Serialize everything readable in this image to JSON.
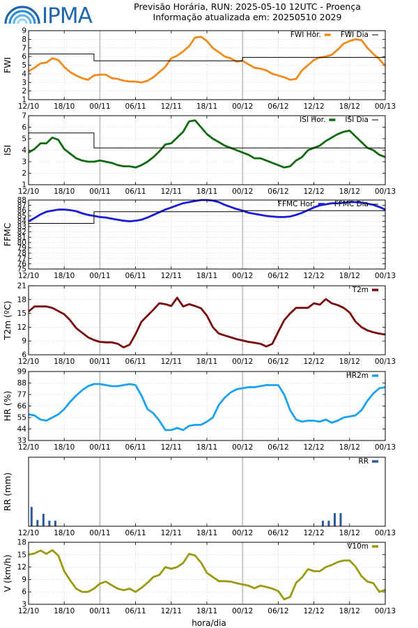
{
  "header": {
    "logo_text": "IPMA",
    "title_line1": "Previsão Horária, RUN: 2025-05-10 12UTC - Proença",
    "title_line2": "Informação atualizada em: 20250510 2029"
  },
  "colors": {
    "fwi": "#f28a1b",
    "isi": "#0d6b0d",
    "ffmc": "#1a1adb",
    "t2m": "#7a0a0a",
    "hr2m": "#1ba1f2",
    "rr": "#2a5a9c",
    "v10m": "#9a9a10",
    "grid": "#bfbfbf",
    "divider": "#c8c8c8",
    "logo": "#1f66ad"
  },
  "x_axis": {
    "title": "hora/dia",
    "ticks": [
      "12/10",
      "18/10",
      "00/11",
      "06/11",
      "12/11",
      "18/11",
      "00/12",
      "06/12",
      "12/12",
      "18/12",
      "00/13"
    ]
  },
  "chart_data": [
    {
      "id": "fwi",
      "type": "line",
      "ylabel": "FWI",
      "ylim": [
        1,
        9
      ],
      "yticks": [
        "1",
        "2",
        "3",
        "4",
        "5",
        "6",
        "7",
        "8",
        "9"
      ],
      "grid": true,
      "legend": "top-right",
      "series": [
        {
          "name": "FWI Hor.",
          "style": "line",
          "x": [
            0,
            1,
            2,
            3,
            4,
            5,
            6,
            7,
            8,
            9,
            10,
            11,
            12,
            13,
            14,
            15,
            16,
            17,
            18,
            19,
            20,
            21,
            22,
            23,
            24,
            25,
            26,
            27,
            28,
            29,
            30,
            31,
            32,
            33,
            34,
            35,
            36,
            37,
            38,
            39,
            40,
            41,
            42,
            43,
            44,
            45,
            46,
            47,
            48,
            49,
            50,
            51,
            52,
            53,
            54,
            55,
            56,
            57,
            58,
            59,
            60
          ],
          "values": [
            4.3,
            4.7,
            5.2,
            5.3,
            5.8,
            5.6,
            4.8,
            4.2,
            3.8,
            3.5,
            3.3,
            3.8,
            3.9,
            3.9,
            3.5,
            3.4,
            3.2,
            3.1,
            3.1,
            3.0,
            3.2,
            3.6,
            4.2,
            4.8,
            5.8,
            6.1,
            6.6,
            7.2,
            8.2,
            8.3,
            7.8,
            7.0,
            6.5,
            6.0,
            5.8,
            5.4,
            5.5,
            5.1,
            4.7,
            4.6,
            4.4,
            4.0,
            3.8,
            3.6,
            3.3,
            3.4,
            4.4,
            5.0,
            5.6,
            5.9,
            6.0,
            6.2,
            6.8,
            7.5,
            7.8,
            8.0,
            7.9,
            7.0,
            6.3,
            5.7,
            4.9
          ]
        },
        {
          "name": "FWI Dia",
          "style": "step",
          "x": [
            0,
            11,
            11,
            36,
            36,
            60
          ],
          "values": [
            6.3,
            6.3,
            5.5,
            5.5,
            5.9,
            5.9
          ]
        }
      ]
    },
    {
      "id": "isi",
      "type": "line",
      "ylabel": "ISI",
      "ylim": [
        1,
        7
      ],
      "yticks": [
        "1",
        "2",
        "3",
        "4",
        "5",
        "6",
        "7"
      ],
      "grid": true,
      "legend": "top-right",
      "series": [
        {
          "name": "ISI Hor.",
          "style": "line",
          "x": [
            0,
            1,
            2,
            3,
            4,
            5,
            6,
            7,
            8,
            9,
            10,
            11,
            12,
            13,
            14,
            15,
            16,
            17,
            18,
            19,
            20,
            21,
            22,
            23,
            24,
            25,
            26,
            27,
            28,
            29,
            30,
            31,
            32,
            33,
            34,
            35,
            36,
            37,
            38,
            39,
            40,
            41,
            42,
            43,
            44,
            45,
            46,
            47,
            48,
            49,
            50,
            51,
            52,
            53,
            54,
            55,
            56,
            57,
            58,
            59,
            60
          ],
          "values": [
            3.8,
            4.1,
            4.6,
            4.6,
            5.1,
            4.9,
            4.1,
            3.7,
            3.3,
            3.1,
            3.0,
            3.0,
            3.1,
            3.0,
            2.9,
            2.7,
            2.6,
            2.6,
            2.5,
            2.7,
            3.0,
            3.4,
            3.9,
            4.5,
            4.6,
            5.1,
            5.6,
            6.5,
            6.6,
            6.0,
            5.4,
            5.0,
            4.7,
            4.4,
            4.2,
            4.0,
            3.8,
            3.6,
            3.3,
            3.3,
            3.1,
            2.9,
            2.7,
            2.5,
            2.6,
            3.1,
            3.4,
            4.0,
            4.2,
            4.4,
            4.8,
            5.1,
            5.4,
            5.6,
            5.7,
            5.2,
            4.7,
            4.2,
            4.0,
            3.6,
            3.4
          ]
        },
        {
          "name": "ISI Dia",
          "style": "step",
          "x": [
            0,
            11,
            11,
            60
          ],
          "values": [
            5.5,
            5.5,
            4.2,
            4.2
          ]
        }
      ]
    },
    {
      "id": "ffmc",
      "type": "line",
      "ylabel": "FFMC",
      "ylim": [
        75,
        88
      ],
      "yticks": [
        "75",
        "76",
        "77",
        "78",
        "79",
        "80",
        "81",
        "82",
        "83",
        "84",
        "85",
        "86",
        "87",
        "88"
      ],
      "grid": true,
      "legend": "top-right",
      "series": [
        {
          "name": "FFMC Hor.",
          "style": "line",
          "x": [
            0,
            1,
            2,
            3,
            4,
            5,
            6,
            7,
            8,
            9,
            10,
            11,
            12,
            13,
            14,
            15,
            16,
            17,
            18,
            19,
            20,
            21,
            22,
            23,
            24,
            25,
            26,
            27,
            28,
            29,
            30,
            31,
            32,
            33,
            34,
            35,
            36,
            37,
            38,
            39,
            40,
            41,
            42,
            43,
            44,
            45,
            46,
            47,
            48,
            49,
            50,
            51,
            52,
            53,
            54,
            55,
            56,
            57,
            58,
            59,
            60
          ],
          "values": [
            84.0,
            84.6,
            85.3,
            85.8,
            86.0,
            86.2,
            86.2,
            86.1,
            85.9,
            85.5,
            85.2,
            85.0,
            84.8,
            84.7,
            84.5,
            84.3,
            84.1,
            84.0,
            84.1,
            84.3,
            84.7,
            85.2,
            85.7,
            86.2,
            86.6,
            87.0,
            87.4,
            87.6,
            87.8,
            88.0,
            88.0,
            87.9,
            87.6,
            87.1,
            86.7,
            86.3,
            86.0,
            85.6,
            85.4,
            85.2,
            85.0,
            84.9,
            84.8,
            84.8,
            84.9,
            85.2,
            85.6,
            86.1,
            86.6,
            87.0,
            87.2,
            87.4,
            87.4,
            87.5,
            87.6,
            87.6,
            87.5,
            87.3,
            87.1,
            86.7,
            86.2
          ]
        },
        {
          "name": "FFMC Dia",
          "style": "step",
          "x": [
            0,
            11,
            11,
            36,
            36,
            60
          ],
          "values": [
            83.6,
            83.6,
            85.8,
            85.8,
            86.0,
            86.0
          ]
        }
      ]
    },
    {
      "id": "t2m",
      "type": "line",
      "ylabel": "T2m (ºC)",
      "ylim": [
        6,
        21
      ],
      "yticks": [
        "6",
        "9",
        "12",
        "15",
        "18",
        "21"
      ],
      "grid": true,
      "legend": "top-right",
      "series": [
        {
          "name": "T2m",
          "style": "line",
          "x": [
            0,
            1,
            2,
            3,
            4,
            5,
            6,
            7,
            8,
            9,
            10,
            11,
            12,
            13,
            14,
            15,
            16,
            17,
            18,
            19,
            20,
            21,
            22,
            23,
            24,
            25,
            26,
            27,
            28,
            29,
            30,
            31,
            32,
            33,
            34,
            35,
            36,
            37,
            38,
            39,
            40,
            41,
            42,
            43,
            44,
            45,
            46,
            47,
            48,
            49,
            50,
            51,
            52,
            53,
            54,
            55,
            56,
            57,
            58,
            59,
            60
          ],
          "values": [
            15.4,
            16.5,
            16.5,
            16.5,
            16.2,
            15.5,
            14.8,
            13.5,
            11.8,
            10.8,
            9.8,
            9.2,
            8.8,
            8.7,
            8.7,
            8.4,
            7.6,
            8.2,
            10.5,
            13.2,
            14.5,
            15.8,
            17.2,
            17.0,
            16.6,
            18.4,
            16.5,
            17.0,
            16.6,
            16.1,
            14.5,
            12.0,
            10.6,
            10.2,
            9.8,
            9.4,
            9.1,
            8.8,
            8.6,
            8.4,
            7.8,
            8.4,
            11.0,
            13.5,
            15.0,
            16.2,
            16.2,
            16.2,
            17.2,
            16.9,
            18.1,
            17.2,
            16.8,
            16.2,
            15.2,
            13.2,
            12.0,
            11.3,
            10.9,
            10.6,
            10.4
          ]
        }
      ]
    },
    {
      "id": "hr2m",
      "type": "line",
      "ylabel": "HR (%)",
      "ylim": [
        33,
        99
      ],
      "yticks": [
        "33",
        "44",
        "55",
        "66",
        "77",
        "88",
        "99"
      ],
      "grid": true,
      "legend": "top-right",
      "series": [
        {
          "name": "HR2m",
          "style": "line",
          "x": [
            0,
            1,
            2,
            3,
            4,
            5,
            6,
            7,
            8,
            9,
            10,
            11,
            12,
            13,
            14,
            15,
            16,
            17,
            18,
            19,
            20,
            21,
            22,
            23,
            24,
            25,
            26,
            27,
            28,
            29,
            30,
            31,
            32,
            33,
            34,
            35,
            36,
            37,
            38,
            39,
            40,
            41,
            42,
            43,
            44,
            45,
            46,
            47,
            48,
            49,
            50,
            51,
            52,
            53,
            54,
            55,
            56,
            57,
            58,
            59,
            60
          ],
          "values": [
            58,
            57,
            53,
            52,
            55,
            58,
            63,
            70,
            76,
            81,
            85,
            87,
            87,
            86,
            85,
            85,
            86,
            87,
            86,
            76,
            63,
            59,
            52,
            43,
            43,
            45,
            43,
            47,
            48,
            48,
            51,
            55,
            67,
            74,
            79,
            82,
            83,
            84,
            84,
            85,
            86,
            86,
            86,
            77,
            62,
            53,
            51,
            52,
            52,
            51,
            53,
            50,
            52,
            55,
            56,
            57,
            62,
            71,
            78,
            83,
            84
          ]
        }
      ]
    },
    {
      "id": "rr",
      "type": "bar",
      "ylabel": "RR (mm)",
      "ylim": [
        0,
        1
      ],
      "yticks": [],
      "grid": false,
      "legend": "top-right",
      "series": [
        {
          "name": "RR",
          "style": "bar",
          "x": [
            0,
            1,
            2,
            3,
            4,
            49,
            50,
            51,
            52
          ],
          "values": [
            0.28,
            0.09,
            0.18,
            0.08,
            0.08,
            0.08,
            0.08,
            0.19,
            0.19
          ]
        }
      ]
    },
    {
      "id": "v10m",
      "type": "line",
      "ylabel": "V (km/h)",
      "ylim": [
        3,
        18
      ],
      "yticks": [
        "3",
        "6",
        "9",
        "12",
        "15",
        "18"
      ],
      "grid": true,
      "legend": "top-right",
      "series": [
        {
          "name": "V10m",
          "style": "line",
          "x": [
            0,
            1,
            2,
            3,
            4,
            5,
            6,
            7,
            8,
            9,
            10,
            11,
            12,
            13,
            14,
            15,
            16,
            17,
            18,
            19,
            20,
            21,
            22,
            23,
            24,
            25,
            26,
            27,
            28,
            29,
            30,
            31,
            32,
            33,
            34,
            35,
            36,
            37,
            38,
            39,
            40,
            41,
            42,
            43,
            44,
            45,
            46,
            47,
            48,
            49,
            50,
            51,
            52,
            53,
            54,
            55,
            56,
            57,
            58,
            59,
            60
          ],
          "values": [
            15.0,
            15.3,
            16.0,
            15.2,
            16.1,
            14.8,
            11.0,
            8.8,
            6.8,
            6.0,
            6.0,
            6.8,
            8.0,
            8.5,
            7.6,
            6.8,
            6.4,
            6.8,
            6.0,
            7.0,
            8.2,
            9.6,
            10.1,
            12.0,
            11.6,
            12.0,
            13.0,
            15.2,
            14.8,
            13.1,
            10.6,
            9.6,
            8.6,
            8.6,
            8.5,
            8.1,
            7.8,
            7.5,
            6.9,
            7.5,
            7.2,
            6.8,
            6.2,
            4.2,
            4.8,
            8.2,
            9.5,
            11.5,
            11.0,
            11.0,
            12.0,
            12.5,
            13.2,
            13.6,
            13.6,
            12.1,
            9.8,
            8.5,
            8.1,
            6.0,
            6.5
          ]
        }
      ]
    }
  ]
}
